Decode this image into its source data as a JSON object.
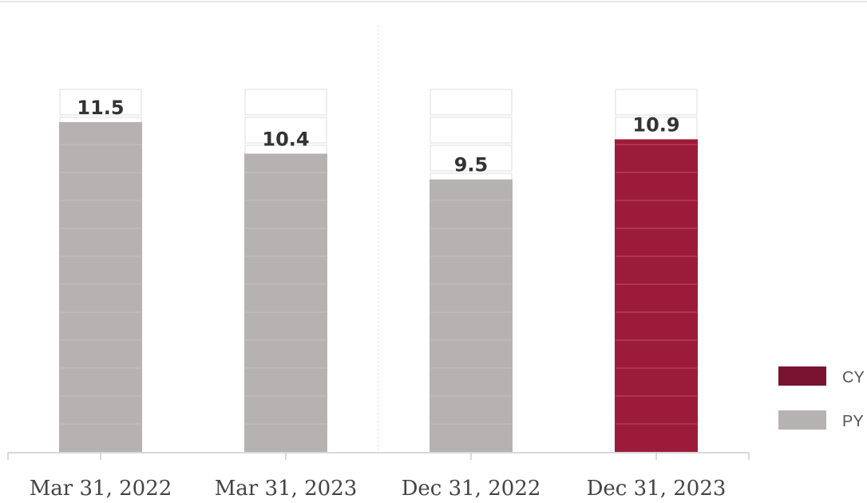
{
  "chart_data": {
    "type": "bar",
    "categories": [
      "Mar 31, 2022",
      "Mar 31, 2023",
      "Dec 31, 2022",
      "Dec 31, 2023"
    ],
    "values": [
      11.5,
      10.4,
      9.5,
      10.9
    ],
    "series_by_bar": [
      "PY",
      "PY",
      "PY",
      "CY"
    ],
    "ylim": [
      0,
      12.75
    ],
    "grid": false,
    "legend": {
      "placement": "right",
      "items": [
        {
          "label": "CY",
          "color": "#7a1232"
        },
        {
          "label": "PY",
          "color": "#b7b2b2"
        }
      ]
    },
    "colors": {
      "CY": "#9c1a3a",
      "PY": "#b7b2b2",
      "label": "#333333",
      "axis": "#cccccc"
    }
  }
}
